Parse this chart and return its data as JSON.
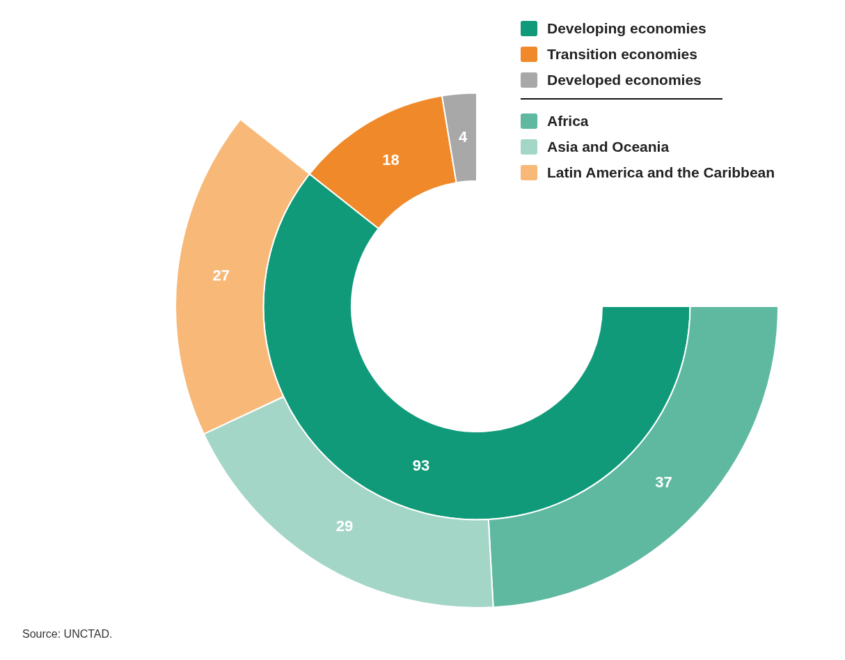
{
  "chart_data": {
    "type": "donut",
    "categories": [
      "Developing economies",
      "Transition economies",
      "Developed economies",
      "Africa",
      "Asia and Oceania",
      "Latin America and the Caribbean"
    ],
    "series": [
      {
        "values": [
          93,
          18,
          4,
          null,
          null,
          null
        ],
        "colors": [
          "#109a79",
          "#f0892a",
          "#a8a8a8",
          null,
          null,
          null
        ]
      },
      {
        "values": [
          null,
          null,
          null,
          37,
          29,
          27
        ],
        "colors": [
          null,
          null,
          null,
          "#5fb8a0",
          "#a4d6c7",
          "#f8b878"
        ]
      }
    ],
    "data_labels": true,
    "legend": "top right",
    "annotations": [
      "Source: UNCTAD."
    ]
  }
}
